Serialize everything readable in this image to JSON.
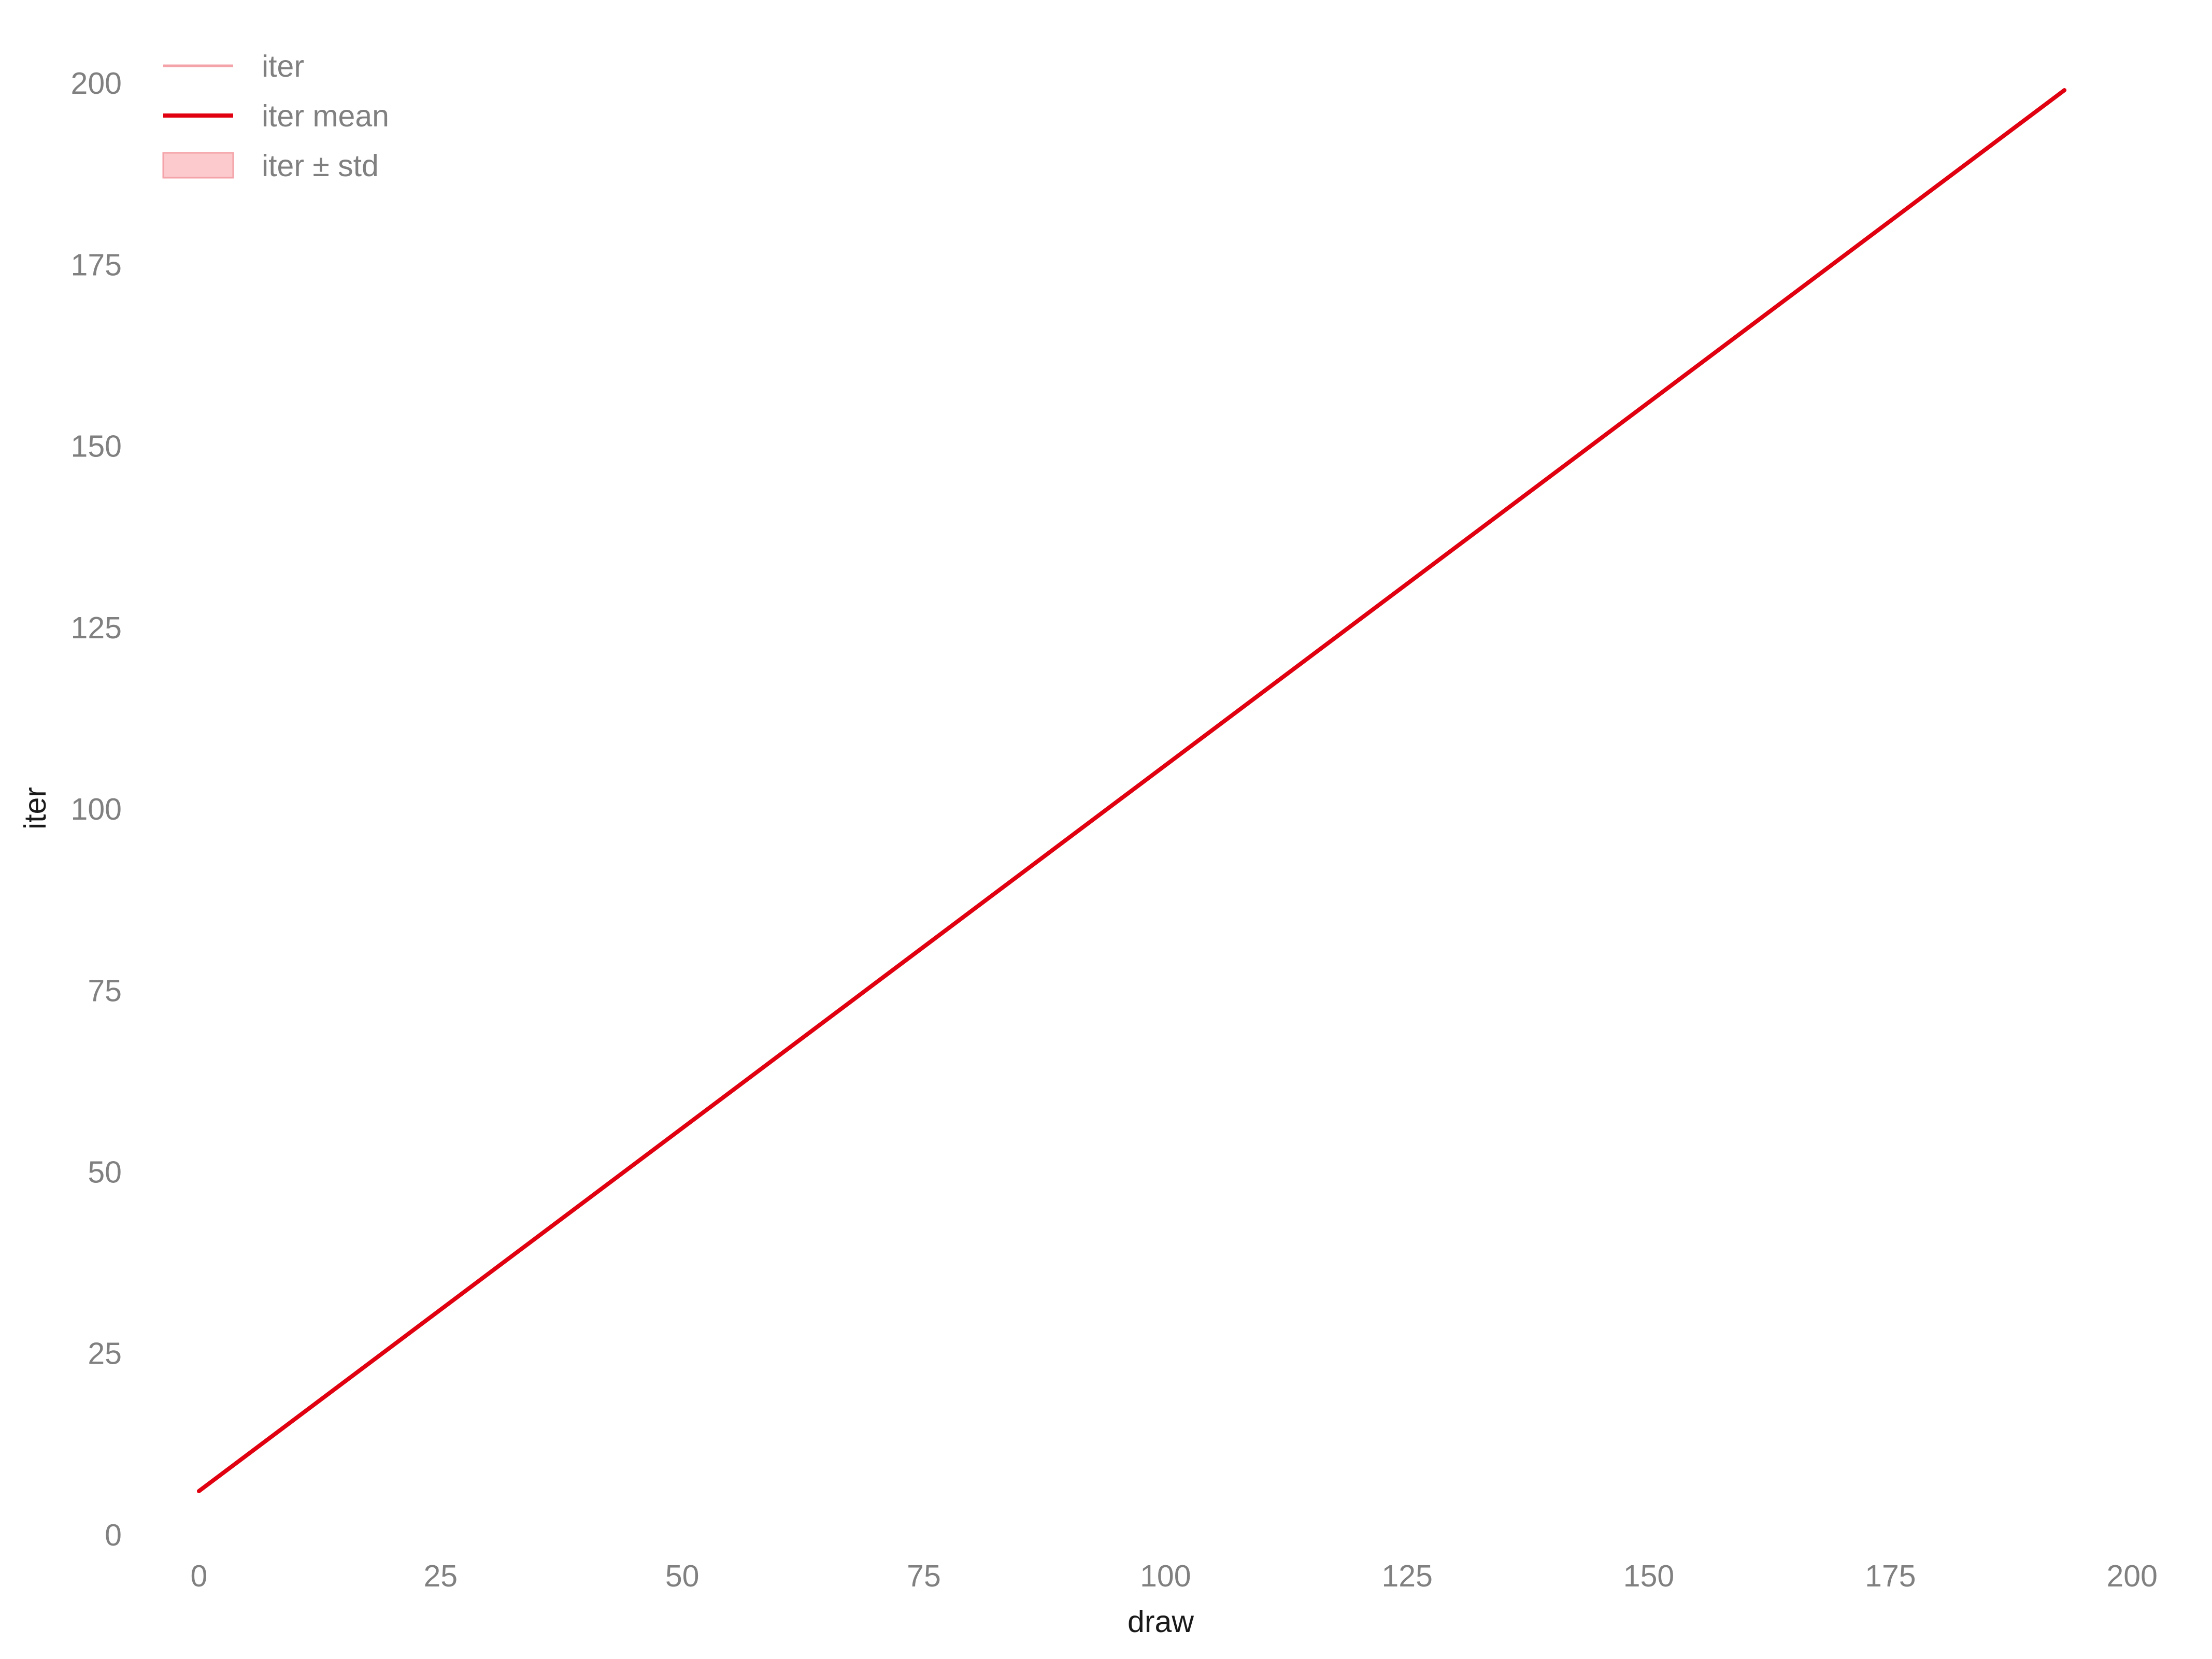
{
  "chart_data": {
    "type": "line",
    "title": "",
    "xlabel": "draw",
    "ylabel": "iter",
    "xlim": [
      -4.5,
      203.5
    ],
    "ylim": [
      -2,
      205
    ],
    "x_ticks": [
      0,
      25,
      50,
      75,
      100,
      125,
      150,
      175,
      200
    ],
    "y_ticks": [
      0,
      25,
      50,
      75,
      100,
      125,
      150,
      175,
      200
    ],
    "x_tick_labels": [
      "0",
      "25",
      "50",
      "75",
      "100",
      "125",
      "150",
      "175",
      "200"
    ],
    "y_tick_labels": [
      "0",
      "25",
      "50",
      "75",
      "100",
      "125",
      "150",
      "175",
      "200"
    ],
    "grid": false,
    "legend_position": "top-left",
    "series": [
      {
        "name": "iter",
        "kind": "line",
        "color": "#f4a3a8",
        "x": [
          0,
          193
        ],
        "y": [
          6,
          199
        ]
      },
      {
        "name": "iter mean",
        "kind": "line",
        "color": "#e0000f",
        "x": [
          0,
          193
        ],
        "y": [
          6,
          199
        ]
      },
      {
        "name": "iter ± std",
        "kind": "band",
        "color": "#fcc9cc",
        "edge_color": "#f4a3a8",
        "x": [
          0,
          193
        ],
        "lower": [
          6,
          199
        ],
        "upper": [
          6,
          199
        ]
      }
    ]
  }
}
